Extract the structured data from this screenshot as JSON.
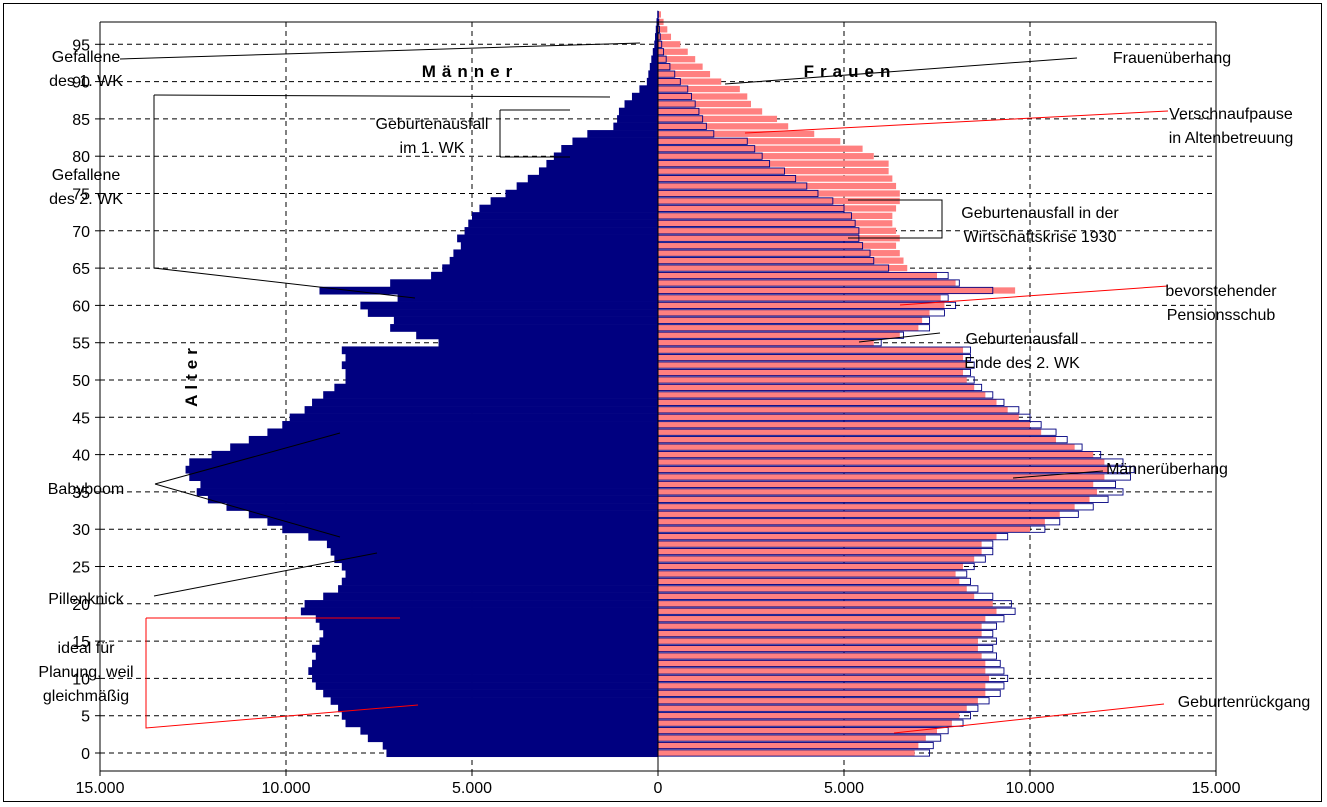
{
  "chart_data": {
    "type": "bar",
    "subtype": "population-pyramid",
    "ylabel": "Alter",
    "side_labels": {
      "left": "Männer",
      "right": "Frauen"
    },
    "x_ticks": [
      "15.000",
      "10.000",
      "5.000",
      "0",
      "5.000",
      "10.000",
      "15.000"
    ],
    "y_ticks": [
      "0",
      "5",
      "10",
      "15",
      "20",
      "25",
      "30",
      "35",
      "40",
      "45",
      "50",
      "55",
      "60",
      "65",
      "70",
      "75",
      "80",
      "85",
      "90",
      "95"
    ],
    "xlim": [
      -15000,
      15000
    ],
    "ylim": [
      0,
      99
    ],
    "grid": true,
    "colors": {
      "men": "#000080",
      "women": "#ff8080",
      "outline": "#000080",
      "grid": "#000000",
      "red_line": "#ff0000"
    },
    "series": [
      {
        "name": "Männer",
        "ages": [
          0,
          1,
          2,
          3,
          4,
          5,
          6,
          7,
          8,
          9,
          10,
          11,
          12,
          13,
          14,
          15,
          16,
          17,
          18,
          19,
          20,
          21,
          22,
          23,
          24,
          25,
          26,
          27,
          28,
          29,
          30,
          31,
          32,
          33,
          34,
          35,
          36,
          37,
          38,
          39,
          40,
          41,
          42,
          43,
          44,
          45,
          46,
          47,
          48,
          49,
          50,
          51,
          52,
          53,
          54,
          55,
          56,
          57,
          58,
          59,
          60,
          61,
          62,
          63,
          64,
          65,
          66,
          67,
          68,
          69,
          70,
          71,
          72,
          73,
          74,
          75,
          76,
          77,
          78,
          79,
          80,
          81,
          82,
          83,
          84,
          85,
          86,
          87,
          88,
          89,
          90,
          91,
          92,
          93,
          94,
          95,
          96,
          97,
          98,
          99
        ],
        "values": [
          7300,
          7400,
          7800,
          8000,
          8400,
          8500,
          8600,
          8800,
          9000,
          9200,
          9300,
          9400,
          9300,
          9200,
          9300,
          9100,
          9000,
          9100,
          9200,
          9600,
          9500,
          9000,
          8600,
          8500,
          8400,
          8500,
          8700,
          8800,
          8900,
          9400,
          10100,
          10500,
          11000,
          11600,
          12100,
          12400,
          12300,
          12600,
          12700,
          12600,
          12000,
          11500,
          11000,
          10500,
          10100,
          9900,
          9500,
          9300,
          9000,
          8700,
          8400,
          8400,
          8500,
          8400,
          8500,
          5900,
          6500,
          7200,
          7100,
          7800,
          8000,
          7000,
          9100,
          7200,
          6100,
          5800,
          5600,
          5500,
          5300,
          5400,
          5200,
          5100,
          5000,
          4800,
          4500,
          4100,
          3800,
          3500,
          3200,
          3000,
          2800,
          2600,
          2300,
          1900,
          1200,
          1100,
          1050,
          900,
          700,
          500,
          300,
          260,
          220,
          180,
          140,
          100,
          80,
          60,
          40,
          20
        ]
      },
      {
        "name": "Frauen",
        "ages": [
          0,
          1,
          2,
          3,
          4,
          5,
          6,
          7,
          8,
          9,
          10,
          11,
          12,
          13,
          14,
          15,
          16,
          17,
          18,
          19,
          20,
          21,
          22,
          23,
          24,
          25,
          26,
          27,
          28,
          29,
          30,
          31,
          32,
          33,
          34,
          35,
          36,
          37,
          38,
          39,
          40,
          41,
          42,
          43,
          44,
          45,
          46,
          47,
          48,
          49,
          50,
          51,
          52,
          53,
          54,
          55,
          56,
          57,
          58,
          59,
          60,
          61,
          62,
          63,
          64,
          65,
          66,
          67,
          68,
          69,
          70,
          71,
          72,
          73,
          74,
          75,
          76,
          77,
          78,
          79,
          80,
          81,
          82,
          83,
          84,
          85,
          86,
          87,
          88,
          89,
          90,
          91,
          92,
          93,
          94,
          95,
          96,
          97,
          98,
          99
        ],
        "values": [
          6900,
          7000,
          7200,
          7500,
          7900,
          8100,
          8300,
          8600,
          8800,
          8800,
          8900,
          8800,
          8800,
          8700,
          8600,
          8600,
          8700,
          8700,
          8800,
          9100,
          9000,
          8500,
          8300,
          8100,
          8000,
          8200,
          8500,
          8700,
          8700,
          9100,
          10000,
          10400,
          10800,
          11200,
          11600,
          11800,
          11700,
          12000,
          12100,
          12000,
          11700,
          11200,
          10700,
          10300,
          10000,
          9700,
          9400,
          9100,
          8800,
          8500,
          8300,
          8200,
          8300,
          8200,
          8200,
          5800,
          6500,
          7000,
          7100,
          7300,
          7700,
          7600,
          9600,
          8000,
          7500,
          6700,
          6600,
          6500,
          6400,
          6500,
          6400,
          6300,
          6300,
          6400,
          6500,
          6500,
          6400,
          6300,
          6200,
          6200,
          5800,
          5500,
          4900,
          4200,
          3500,
          3200,
          2800,
          2500,
          2400,
          2200,
          1700,
          1400,
          1200,
          1000,
          800,
          600,
          350,
          250,
          150,
          80
        ],
        "outline_values": [
          7300,
          7400,
          7600,
          7800,
          8200,
          8400,
          8600,
          8900,
          9200,
          9300,
          9400,
          9300,
          9200,
          9100,
          9000,
          9100,
          9000,
          9100,
          9300,
          9600,
          9500,
          9000,
          8600,
          8400,
          8300,
          8500,
          8800,
          9000,
          9000,
          9400,
          10400,
          10800,
          11300,
          11700,
          12100,
          12500,
          12300,
          12700,
          12800,
          12500,
          11900,
          11400,
          11000,
          10700,
          10300,
          10000,
          9700,
          9300,
          9000,
          8700,
          8500,
          8400,
          8500,
          8400,
          8400,
          6000,
          6600,
          7300,
          7300,
          7700,
          8000,
          7800,
          9000,
          8100,
          7800,
          6200,
          5800,
          5700,
          5500,
          5400,
          5400,
          5300,
          5200,
          5000,
          4700,
          4300,
          4000,
          3700,
          3400,
          3000,
          2800,
          2600,
          2400,
          1500,
          1300,
          1200,
          1100,
          1000,
          900,
          800,
          600,
          450,
          320,
          220,
          150,
          100,
          60,
          40,
          20,
          10
        ]
      }
    ],
    "annotations": [
      {
        "id": "gefallene-1wk",
        "lines": [
          "Gefallene",
          "des 1. WK"
        ]
      },
      {
        "id": "gefallene-2wk",
        "lines": [
          "Gefallene",
          "des 2. WK"
        ]
      },
      {
        "id": "geburtenausfall-1wk",
        "lines": [
          "Geburtenausfall",
          "im 1. WK"
        ]
      },
      {
        "id": "babyboom",
        "lines": [
          "Babyboom"
        ]
      },
      {
        "id": "pillenknick",
        "lines": [
          "Pillenknick"
        ]
      },
      {
        "id": "ideal",
        "lines": [
          "ideal für",
          "Planung, weil",
          "gleichmäßig"
        ]
      },
      {
        "id": "frauenueberhang",
        "lines": [
          "Frauenüberhang"
        ]
      },
      {
        "id": "verschnaufpause",
        "lines": [
          "Verschnaufpause",
          "in Altenbetreuung"
        ]
      },
      {
        "id": "geburtenausfall-1930",
        "lines": [
          "Geburtenausfall in der",
          "Wirtschaftskrise 1930"
        ]
      },
      {
        "id": "pensionsschub",
        "lines": [
          "bevorstehender",
          "Pensionsschub"
        ]
      },
      {
        "id": "geburtenausfall-2wk",
        "lines": [
          "Geburtenausfall",
          "Ende des 2. WK"
        ]
      },
      {
        "id": "maennerueberhang",
        "lines": [
          "Männerüberhang"
        ]
      },
      {
        "id": "geburtenrueckgang",
        "lines": [
          "Geburtenrückgang"
        ]
      }
    ]
  }
}
